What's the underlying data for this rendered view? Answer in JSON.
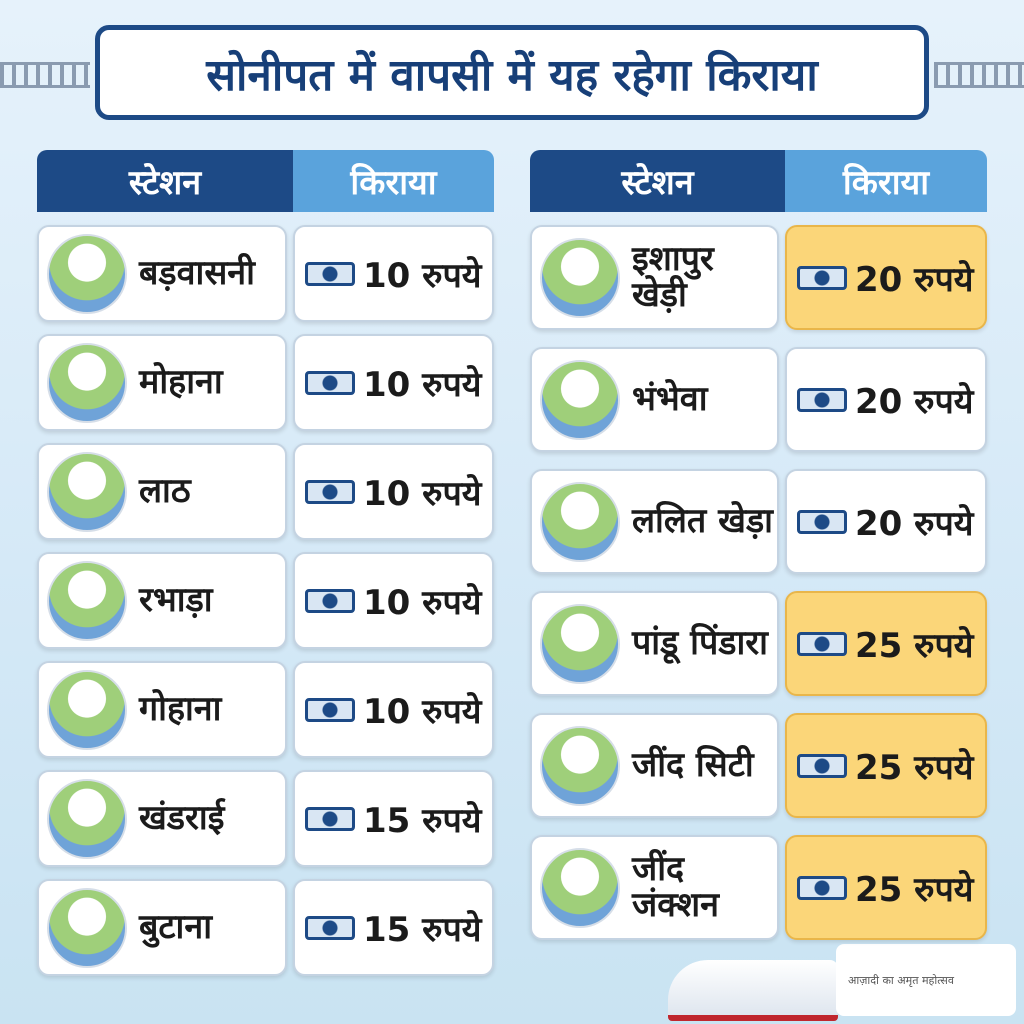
{
  "header": {
    "title": "सोनीपत में वापसी में यह रहेगा किराया"
  },
  "tables": [
    {
      "columns": [
        "स्टेशन",
        "किराया"
      ],
      "rows": [
        {
          "station": "बड़वासनी",
          "fare": "10 रुपये",
          "highlighted": false
        },
        {
          "station": "मोहाना",
          "fare": "10 रुपये",
          "highlighted": false
        },
        {
          "station": "लाठ",
          "fare": "10 रुपये",
          "highlighted": false
        },
        {
          "station": "रभाड़ा",
          "fare": "10 रुपये",
          "highlighted": false
        },
        {
          "station": "गोहाना",
          "fare": "10 रुपये",
          "highlighted": false
        },
        {
          "station": "खंडराई",
          "fare": "15 रुपये",
          "highlighted": false
        },
        {
          "station": "बुटाना",
          "fare": "15 रुपये",
          "highlighted": false
        }
      ]
    },
    {
      "columns": [
        "स्टेशन",
        "किराया"
      ],
      "rows": [
        {
          "station": "इशापुर खेड़ी",
          "fare": "20 रुपये",
          "highlighted": true
        },
        {
          "station": "भंभेवा",
          "fare": "20 रुपये",
          "highlighted": false
        },
        {
          "station": "ललित खेड़ा",
          "fare": "20 रुपये",
          "highlighted": false
        },
        {
          "station": "पांडू पिंडारा",
          "fare": "25 रुपये",
          "highlighted": true
        },
        {
          "station": "जींद सिटी",
          "fare": "25 रुपये",
          "highlighted": true
        },
        {
          "station": "जींद जंक्शन",
          "fare": "25 रुपये",
          "highlighted": true
        }
      ]
    }
  ],
  "logo": {
    "text": "आज़ादी का अमृत महोत्सव"
  }
}
